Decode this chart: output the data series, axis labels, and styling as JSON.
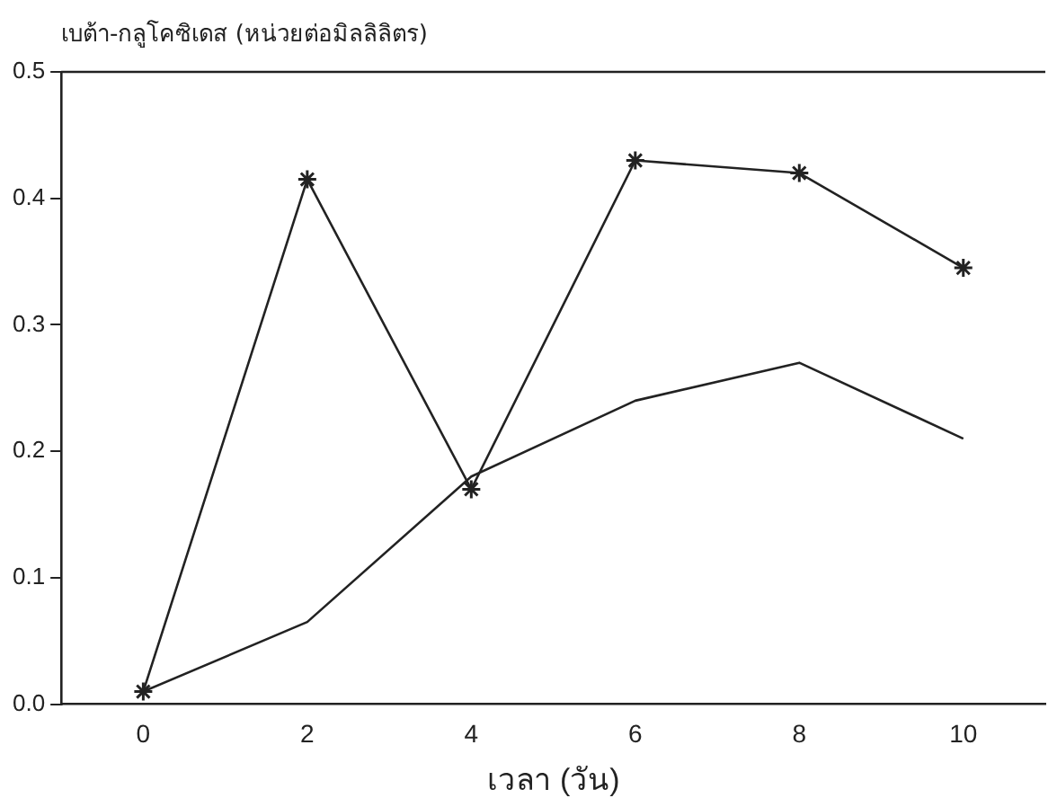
{
  "chart_data": {
    "type": "line",
    "ylabel": "เบต้า-กลูโคซิเดส (หน่วยต่อมิลลิลิตร)",
    "xlabel": "เวลา (วัน)",
    "x": [
      0,
      2,
      4,
      6,
      8,
      10
    ],
    "series": [
      {
        "color": "#222222",
        "marker": "cross",
        "values": [
          0.01,
          0.415,
          0.17,
          0.43,
          0.42,
          0.345
        ]
      },
      {
        "color": "#222222",
        "marker": "none",
        "values": [
          0.01,
          0.065,
          0.18,
          0.24,
          0.27,
          0.21
        ]
      }
    ],
    "xlim": [
      -1,
      11
    ],
    "xticks": [
      0,
      2,
      4,
      6,
      8,
      10
    ],
    "ylim": [
      0,
      0.5
    ],
    "yticks": [
      {
        "value": 0,
        "label": "0.0"
      },
      0.1,
      0.2,
      0.3,
      0.4,
      0.5
    ],
    "grid": false,
    "legend": false
  }
}
